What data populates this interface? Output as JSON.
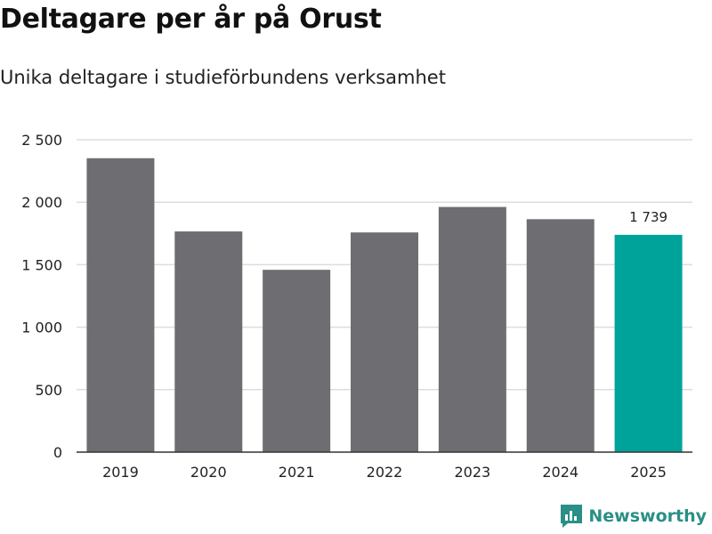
{
  "title": "Deltagare per år på Orust",
  "subtitle": "Unika deltagare i studieförbundens verksamhet",
  "brand": "Newsworthy",
  "colors": {
    "bar": "#6e6d72",
    "highlight": "#00a39a",
    "grid": "#dddddd",
    "axis": "#333333",
    "text": "#222222"
  },
  "chart_data": {
    "type": "bar",
    "categories": [
      "2019",
      "2020",
      "2021",
      "2022",
      "2023",
      "2024",
      "2025"
    ],
    "values": [
      2352,
      1766,
      1459,
      1758,
      1962,
      1864,
      1739
    ],
    "highlight_index": 6,
    "data_labels": [
      {
        "index": 6,
        "text": "1 739"
      }
    ],
    "ylim": [
      0,
      2500
    ],
    "yticks": [
      0,
      500,
      1000,
      1500,
      2000,
      2500
    ],
    "ytick_labels": [
      "0",
      "500",
      "1 000",
      "1 500",
      "2 000",
      "2 500"
    ],
    "grid": true,
    "title": "Deltagare per år på Orust",
    "xlabel": "",
    "ylabel": ""
  }
}
